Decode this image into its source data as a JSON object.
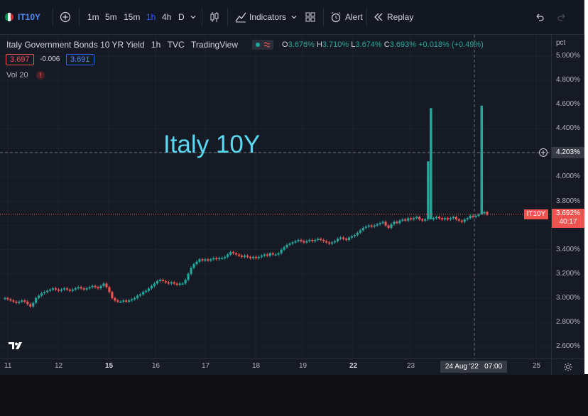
{
  "toolbar": {
    "symbol": "IT10Y",
    "intervals": [
      "1m",
      "5m",
      "15m",
      "1h",
      "4h",
      "D"
    ],
    "active_interval": "1h",
    "indicators_label": "Indicators",
    "alert_label": "Alert",
    "replay_label": "Replay"
  },
  "legend": {
    "title": "Italy Government Bonds 10 YR Yield",
    "interval": "1h",
    "source": "TVC",
    "provider": "TradingView",
    "o_label": "O",
    "o_value": "3.676%",
    "h_label": "H",
    "h_value": "3.710%",
    "l_label": "L",
    "l_value": "3.674%",
    "c_label": "C",
    "c_value": "3.693%",
    "change": "+0.018% (+0.49%)",
    "bid": "3.697",
    "spread": "-0.006",
    "ask": "3.691",
    "vol_label": "Vol",
    "vol_value": "20"
  },
  "annotation": "Italy 10Y",
  "price_axis": {
    "unit": "pct",
    "ticks": [
      "5.000%",
      "4.800%",
      "4.600%",
      "4.400%",
      "4.200%",
      "4.000%",
      "3.800%",
      "3.600%",
      "3.400%",
      "3.200%",
      "3.000%",
      "2.800%",
      "2.600%"
    ],
    "crosshair_label": "4.203%",
    "last_price_label": "3.692%",
    "countdown": "40:17",
    "symbol_tag": "IT10Y"
  },
  "time_axis": {
    "labels": [
      "11",
      "12",
      "15",
      "16",
      "17",
      "18",
      "19",
      "22",
      "23",
      "25"
    ],
    "bold_labels": [
      "15",
      "22"
    ],
    "crosshair_label": "24 Aug '22   07:00"
  },
  "colors": {
    "up": "#26a69a",
    "down": "#ef5350",
    "accent": "#2962ff",
    "annotation": "#5ad8f0"
  },
  "chart_data": {
    "type": "candlestick",
    "title": "Italy Government Bonds 10 YR Yield",
    "unit": "%",
    "ylim": [
      2.5,
      5.05
    ],
    "y_ticks": [
      5.0,
      4.8,
      4.6,
      4.4,
      4.2,
      4.0,
      3.8,
      3.6,
      3.4,
      3.2,
      3.0,
      2.8,
      2.6
    ],
    "x_labels": [
      "11",
      "12",
      "15",
      "16",
      "17",
      "18",
      "19",
      "22",
      "23",
      "25"
    ],
    "crosshair": {
      "x_label": "24 Aug '22 07:00",
      "y": 4.203
    },
    "last_price": 3.692,
    "series": [
      {
        "name": "Italy Government Bonds 10 YR Yield",
        "close": [
          3.0,
          2.99,
          2.98,
          2.97,
          2.96,
          2.97,
          2.98,
          2.97,
          2.95,
          2.93,
          2.96,
          3.0,
          3.02,
          3.04,
          3.05,
          3.06,
          3.07,
          3.08,
          3.07,
          3.06,
          3.07,
          3.08,
          3.07,
          3.06,
          3.07,
          3.08,
          3.09,
          3.08,
          3.07,
          3.08,
          3.09,
          3.1,
          3.09,
          3.08,
          3.1,
          3.12,
          3.09,
          3.05,
          3.0,
          2.98,
          2.97,
          2.97,
          2.98,
          2.97,
          2.98,
          2.99,
          3.0,
          3.02,
          3.03,
          3.05,
          3.06,
          3.08,
          3.1,
          3.12,
          3.14,
          3.15,
          3.14,
          3.13,
          3.12,
          3.13,
          3.12,
          3.11,
          3.12,
          3.12,
          3.15,
          3.2,
          3.25,
          3.28,
          3.3,
          3.32,
          3.31,
          3.32,
          3.31,
          3.32,
          3.33,
          3.32,
          3.33,
          3.33,
          3.34,
          3.36,
          3.38,
          3.37,
          3.36,
          3.35,
          3.34,
          3.35,
          3.34,
          3.33,
          3.34,
          3.33,
          3.34,
          3.35,
          3.36,
          3.35,
          3.37,
          3.36,
          3.36,
          3.37,
          3.4,
          3.42,
          3.44,
          3.45,
          3.46,
          3.47,
          3.48,
          3.47,
          3.46,
          3.47,
          3.48,
          3.47,
          3.48,
          3.49,
          3.48,
          3.47,
          3.46,
          3.45,
          3.46,
          3.47,
          3.49,
          3.5,
          3.49,
          3.48,
          3.5,
          3.51,
          3.52,
          3.54,
          3.56,
          3.58,
          3.59,
          3.6,
          3.59,
          3.6,
          3.61,
          3.62,
          3.63,
          3.6,
          3.58,
          3.61,
          3.63,
          3.62,
          3.64,
          3.65,
          3.64,
          3.66,
          3.65,
          3.66,
          3.67,
          3.65,
          3.64,
          3.65,
          3.66,
          3.65,
          3.66,
          3.67,
          3.66,
          3.65,
          3.66,
          3.65,
          3.66,
          3.67,
          3.65,
          3.64,
          3.63,
          3.65,
          3.66,
          3.68,
          3.67,
          3.68,
          3.69,
          3.7,
          3.71,
          3.69
        ]
      }
    ]
  }
}
